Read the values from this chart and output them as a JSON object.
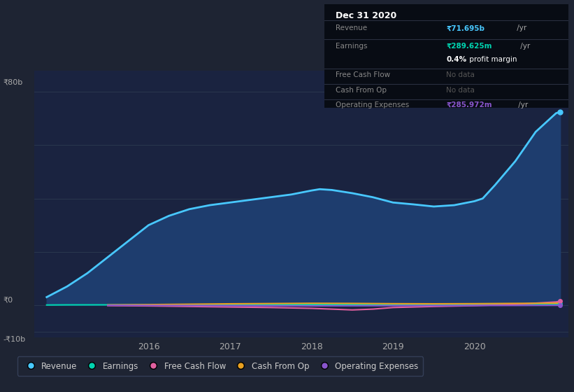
{
  "bg_color": "#1e2433",
  "plot_bg_color": "#1a2340",
  "grid_color": "#2d3a50",
  "title_box": {
    "date": "Dec 31 2020",
    "revenue_label": "Revenue",
    "revenue_val": "₹71.695b",
    "revenue_suffix": " /yr",
    "earnings_label": "Earnings",
    "earnings_val": "₹289.625m",
    "earnings_suffix": " /yr",
    "profit_margin": "0.4%",
    "profit_margin_suffix": " profit margin",
    "fcf_label": "Free Cash Flow",
    "fcf_val": "No data",
    "cfo_label": "Cash From Op",
    "cfo_val": "No data",
    "opex_label": "Operating Expenses",
    "opex_val": "₹285.972m",
    "opex_suffix": " /yr"
  },
  "ylim": [
    -12,
    88
  ],
  "xlim": [
    2014.6,
    2021.15
  ],
  "xticks": [
    2016,
    2017,
    2018,
    2019,
    2020
  ],
  "ytick_80b_label": "₹80b",
  "ytick_0_label": "₹0",
  "ytick_neg10b_label": "-₹10b",
  "series": {
    "revenue": {
      "color": "#48c8ff",
      "fill_color": "#1e3d6e",
      "label": "Revenue",
      "x": [
        2014.75,
        2015.0,
        2015.25,
        2015.5,
        2015.75,
        2016.0,
        2016.25,
        2016.5,
        2016.75,
        2017.0,
        2017.25,
        2017.5,
        2017.75,
        2018.0,
        2018.1,
        2018.25,
        2018.5,
        2018.75,
        2019.0,
        2019.25,
        2019.5,
        2019.75,
        2020.0,
        2020.1,
        2020.25,
        2020.5,
        2020.75,
        2021.0,
        2021.05
      ],
      "y": [
        3.0,
        7.0,
        12.0,
        18.0,
        24.0,
        30.0,
        33.5,
        36.0,
        37.5,
        38.5,
        39.5,
        40.5,
        41.5,
        43.0,
        43.5,
        43.2,
        42.0,
        40.5,
        38.5,
        37.8,
        37.0,
        37.5,
        39.0,
        40.0,
        45.0,
        54.0,
        65.0,
        72.0,
        72.5
      ]
    },
    "earnings": {
      "color": "#00d4b0",
      "label": "Earnings",
      "x": [
        2014.75,
        2015.0,
        2015.5,
        2016.0,
        2016.5,
        2017.0,
        2017.5,
        2018.0,
        2018.5,
        2019.0,
        2019.5,
        2020.0,
        2020.5,
        2021.0,
        2021.05
      ],
      "y": [
        0.05,
        0.1,
        0.12,
        0.15,
        0.18,
        0.2,
        0.22,
        0.25,
        0.23,
        0.2,
        0.22,
        0.25,
        0.3,
        0.42,
        0.45
      ]
    },
    "free_cash_flow": {
      "color": "#e060a0",
      "label": "Free Cash Flow",
      "x": [
        2015.5,
        2016.0,
        2016.5,
        2017.0,
        2017.5,
        2018.0,
        2018.25,
        2018.5,
        2018.75,
        2019.0,
        2019.5,
        2020.0,
        2020.5,
        2021.0,
        2021.05
      ],
      "y": [
        -0.2,
        -0.3,
        -0.5,
        -0.7,
        -0.9,
        -1.2,
        -1.5,
        -1.8,
        -1.5,
        -0.9,
        -0.5,
        -0.2,
        0.3,
        1.2,
        1.5
      ]
    },
    "cash_from_op": {
      "color": "#e8a020",
      "label": "Cash From Op",
      "x": [
        2015.5,
        2016.0,
        2016.5,
        2017.0,
        2017.5,
        2018.0,
        2018.5,
        2019.0,
        2019.5,
        2020.0,
        2020.5,
        2021.0,
        2021.05
      ],
      "y": [
        0.1,
        0.2,
        0.35,
        0.5,
        0.6,
        0.7,
        0.65,
        0.55,
        0.5,
        0.55,
        0.65,
        0.75,
        0.8
      ]
    },
    "operating_expenses": {
      "color": "#8855cc",
      "label": "Operating Expenses",
      "x": [
        2015.5,
        2016.0,
        2016.5,
        2017.0,
        2017.5,
        2018.0,
        2018.5,
        2019.0,
        2019.5,
        2020.0,
        2020.5,
        2021.0,
        2021.05
      ],
      "y": [
        -0.05,
        -0.1,
        -0.15,
        -0.2,
        -0.25,
        -0.28,
        -0.25,
        -0.2,
        -0.18,
        -0.15,
        -0.12,
        -0.08,
        -0.05
      ]
    }
  },
  "legend_items": [
    {
      "label": "Revenue",
      "color": "#48c8ff"
    },
    {
      "label": "Earnings",
      "color": "#00d4b0"
    },
    {
      "label": "Free Cash Flow",
      "color": "#e060a0"
    },
    {
      "label": "Cash From Op",
      "color": "#e8a020"
    },
    {
      "label": "Operating Expenses",
      "color": "#8855cc"
    }
  ]
}
